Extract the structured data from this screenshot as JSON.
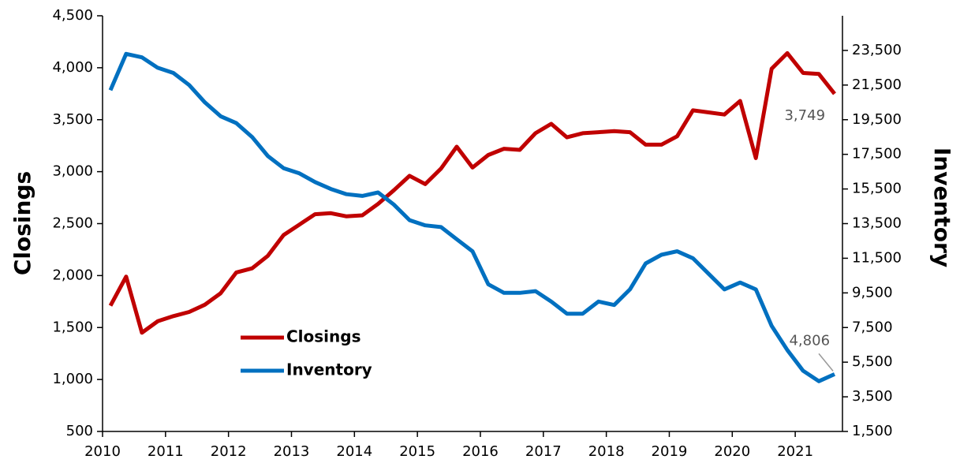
{
  "chart_data": {
    "type": "line",
    "categories": [
      "2010",
      null,
      null,
      null,
      "2011",
      null,
      null,
      null,
      "2012",
      null,
      null,
      null,
      "2013",
      null,
      null,
      null,
      "2014",
      null,
      null,
      null,
      "2015",
      null,
      null,
      null,
      "2016",
      null,
      null,
      null,
      "2017",
      null,
      null,
      null,
      "2018",
      null,
      null,
      null,
      "2019",
      null,
      null,
      null,
      "2020",
      null,
      null,
      null,
      "2021",
      null,
      null
    ],
    "series": [
      {
        "name": "Closings",
        "color": "#c00000",
        "values": [
          1710,
          1990,
          1450,
          1560,
          1610,
          1650,
          1720,
          1830,
          2030,
          2070,
          2190,
          2390,
          2490,
          2590,
          2600,
          2570,
          2580,
          2690,
          2820,
          2960,
          2880,
          3030,
          3240,
          3040,
          3160,
          3220,
          3210,
          3370,
          3460,
          3330,
          3370,
          3380,
          3390,
          3380,
          3260,
          3260,
          3340,
          3590,
          3570,
          3550,
          3680,
          3130,
          3990,
          4140,
          3950,
          3940,
          3749
        ],
        "value_labels": [
          null,
          null,
          null,
          null,
          null,
          null,
          null,
          null,
          null,
          null,
          null,
          null,
          null,
          null,
          null,
          null,
          null,
          null,
          null,
          null,
          null,
          null,
          null,
          null,
          null,
          null,
          null,
          null,
          null,
          null,
          null,
          null,
          null,
          null,
          null,
          null,
          null,
          null,
          null,
          null,
          null,
          null,
          null,
          null,
          null,
          null,
          "3,749"
        ]
      },
      {
        "name": "Inventory",
        "color": "#0070c0",
        "axis": "y2",
        "values": [
          21200,
          23300,
          23100,
          22500,
          22200,
          21500,
          20500,
          19700,
          19300,
          18500,
          17400,
          16700,
          16400,
          15900,
          15500,
          15200,
          15100,
          15300,
          14600,
          13700,
          13400,
          13300,
          12600,
          11900,
          10000,
          9500,
          9500,
          9600,
          9000,
          8300,
          8300,
          9000,
          8800,
          9700,
          11200,
          11700,
          11900,
          11500,
          10600,
          9700,
          10100,
          9700,
          7600,
          6200,
          5000,
          4400,
          4806
        ],
        "value_labels": [
          null,
          null,
          null,
          null,
          null,
          null,
          null,
          null,
          null,
          null,
          null,
          null,
          null,
          null,
          null,
          null,
          null,
          null,
          null,
          null,
          null,
          null,
          null,
          null,
          null,
          null,
          null,
          null,
          null,
          null,
          null,
          null,
          null,
          null,
          null,
          null,
          null,
          null,
          null,
          null,
          null,
          null,
          null,
          null,
          null,
          null,
          "4,806"
        ]
      }
    ],
    "ylabel": "Closings",
    "y2label": "Inventory",
    "ylim": [
      500,
      4500
    ],
    "yticks": [
      500,
      {
        "value": 1000,
        "label": "1,000"
      },
      {
        "value": 1500,
        "label": "1,500"
      },
      {
        "value": 2000,
        "label": "2,000"
      },
      {
        "value": 2500,
        "label": "2,500"
      },
      {
        "value": 3000,
        "label": "3,000"
      },
      {
        "value": 3500,
        "label": "3,500"
      },
      {
        "value": 4000,
        "label": "4,000"
      },
      {
        "value": 4500,
        "label": "4,500"
      }
    ],
    "y2lim": [
      1500,
      25500
    ],
    "y2ticks": [
      {
        "value": 1500,
        "label": "1,500"
      },
      {
        "value": 3500,
        "label": "3,500"
      },
      {
        "value": 5500,
        "label": "5,500"
      },
      {
        "value": 7500,
        "label": "7,500"
      },
      {
        "value": 9500,
        "label": "9,500"
      },
      {
        "value": 11500,
        "label": "11,500"
      },
      {
        "value": 13500,
        "label": "13,500"
      },
      {
        "value": 15500,
        "label": "15,500"
      },
      {
        "value": 17500,
        "label": "17,500"
      },
      {
        "value": 19500,
        "label": "19,500"
      },
      {
        "value": 21500,
        "label": "21,500"
      },
      {
        "value": 23500,
        "label": "23,500"
      }
    ],
    "grid": false,
    "legend": "lower left"
  }
}
